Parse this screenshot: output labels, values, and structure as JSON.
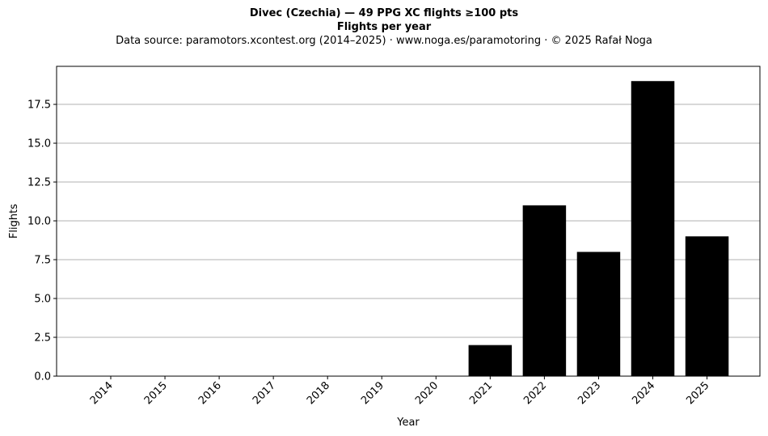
{
  "header": {
    "title": "Divec (Czechia)  —  49 PPG XC flights ≥100 pts",
    "subtitle": "Flights per year",
    "source_line": "Data source: paramotors.xcontest.org (2014–2025)  ·  www.noga.es/paramotoring  ·  © 2025 Rafał Noga"
  },
  "chart_data": {
    "type": "bar",
    "title": "Divec (Czechia)  —  49 PPG XC flights ≥100 pts",
    "subtitle": "Flights per year",
    "xlabel": "Year",
    "ylabel": "Flights",
    "categories": [
      "2014",
      "2015",
      "2016",
      "2017",
      "2018",
      "2019",
      "2020",
      "2021",
      "2022",
      "2023",
      "2024",
      "2025"
    ],
    "values": [
      0,
      0,
      0,
      0,
      0,
      0,
      0,
      2,
      11,
      8,
      19,
      9
    ],
    "ylim": [
      0,
      19.95
    ],
    "yticks": [
      "0.0",
      "2.5",
      "5.0",
      "7.5",
      "10.0",
      "12.5",
      "15.0",
      "17.5"
    ],
    "grid": "horizontal",
    "bar_color": "#000000",
    "grid_color": "#b0b0b0"
  }
}
